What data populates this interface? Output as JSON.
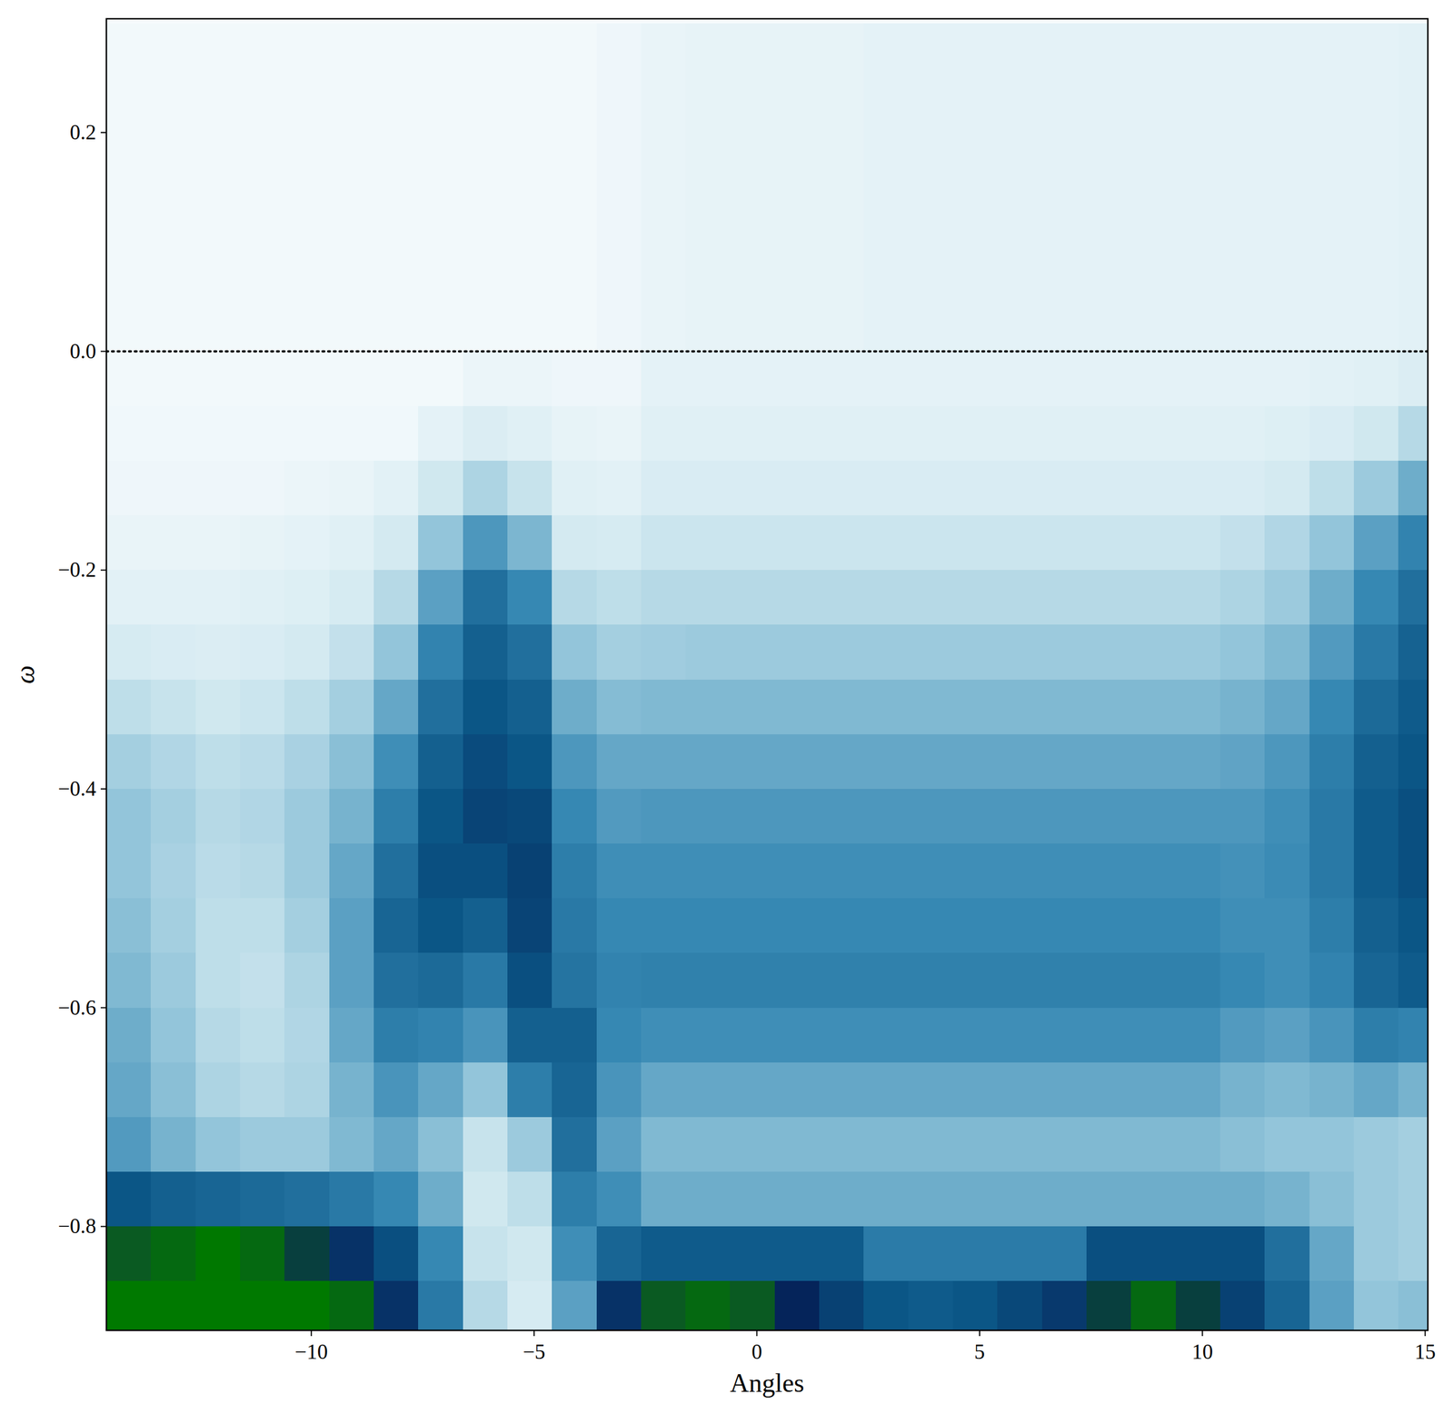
{
  "chart_data": {
    "type": "heatmap",
    "x_label": "Angles",
    "y_label": "ω",
    "xlim": [
      -14.6,
      15.06
    ],
    "ylim": [
      -0.895,
      0.304
    ],
    "xticks": [
      {
        "value": -10,
        "label": "−10"
      },
      {
        "value": -5,
        "label": "−5"
      },
      0,
      5,
      10,
      15
    ],
    "yticks": [
      {
        "value": 0.2,
        "label": "0.2"
      },
      {
        "value": 0,
        "label": "0.0"
      },
      {
        "value": -0.2,
        "label": "−0.2"
      },
      {
        "value": -0.4,
        "label": "−0.4"
      },
      {
        "value": -0.6,
        "label": "−0.6"
      },
      {
        "value": -0.8,
        "label": "−0.8"
      }
    ],
    "hline": 0,
    "zlim": [
      0,
      10
    ],
    "x": [
      -14.1,
      -13.1,
      -12.1,
      -11.1,
      -10.1,
      -9.1,
      -8.1,
      -7.1,
      -6.1,
      -5.1,
      -4.1,
      -3.1,
      -2.1,
      -1.1,
      -0.1,
      0.9,
      1.9,
      2.9,
      3.9,
      4.9,
      5.9,
      6.9,
      7.9,
      8.9,
      9.9,
      10.9,
      11.9,
      12.9,
      13.9,
      14.9
    ],
    "y": [
      0.275,
      0.225,
      0.175,
      0.125,
      0.075,
      0.025,
      -0.025,
      -0.075,
      -0.125,
      -0.175,
      -0.225,
      -0.275,
      -0.325,
      -0.375,
      -0.425,
      -0.475,
      -0.525,
      -0.575,
      -0.625,
      -0.675,
      -0.725,
      -0.775,
      -0.825,
      -0.875
    ],
    "z": [
      [
        0.2,
        0.2,
        0.2,
        0.2,
        0.2,
        0.2,
        0.2,
        0.2,
        0.2,
        0.2,
        0.2,
        0.4,
        0.6,
        0.7,
        0.7,
        0.7,
        0.7,
        0.8,
        0.8,
        0.8,
        0.8,
        0.8,
        0.8,
        0.8,
        0.8,
        0.8,
        0.8,
        0.8,
        0.8,
        0.9
      ],
      [
        0.2,
        0.2,
        0.2,
        0.2,
        0.2,
        0.2,
        0.2,
        0.2,
        0.2,
        0.2,
        0.2,
        0.4,
        0.6,
        0.7,
        0.7,
        0.7,
        0.7,
        0.8,
        0.8,
        0.8,
        0.8,
        0.8,
        0.8,
        0.8,
        0.8,
        0.8,
        0.8,
        0.8,
        0.8,
        0.9
      ],
      [
        0.2,
        0.2,
        0.2,
        0.2,
        0.2,
        0.2,
        0.2,
        0.2,
        0.2,
        0.2,
        0.2,
        0.4,
        0.6,
        0.7,
        0.7,
        0.7,
        0.7,
        0.8,
        0.8,
        0.8,
        0.8,
        0.8,
        0.8,
        0.8,
        0.8,
        0.8,
        0.8,
        0.8,
        0.8,
        0.9
      ],
      [
        0.2,
        0.2,
        0.2,
        0.2,
        0.2,
        0.2,
        0.2,
        0.2,
        0.2,
        0.2,
        0.2,
        0.4,
        0.6,
        0.7,
        0.7,
        0.7,
        0.7,
        0.8,
        0.8,
        0.8,
        0.8,
        0.8,
        0.8,
        0.8,
        0.8,
        0.8,
        0.8,
        0.8,
        0.8,
        0.9
      ],
      [
        0.2,
        0.2,
        0.2,
        0.2,
        0.2,
        0.2,
        0.2,
        0.2,
        0.2,
        0.2,
        0.2,
        0.4,
        0.6,
        0.7,
        0.7,
        0.7,
        0.7,
        0.8,
        0.8,
        0.8,
        0.8,
        0.8,
        0.8,
        0.8,
        0.8,
        0.8,
        0.8,
        0.8,
        0.8,
        0.9
      ],
      [
        0.2,
        0.2,
        0.2,
        0.2,
        0.2,
        0.2,
        0.2,
        0.2,
        0.2,
        0.2,
        0.2,
        0.4,
        0.6,
        0.7,
        0.7,
        0.7,
        0.7,
        0.8,
        0.8,
        0.8,
        0.8,
        0.8,
        0.8,
        0.8,
        0.8,
        0.8,
        0.8,
        0.8,
        0.8,
        0.9
      ],
      [
        0.2,
        0.2,
        0.2,
        0.2,
        0.2,
        0.2,
        0.2,
        0.2,
        0.5,
        0.5,
        0.4,
        0.4,
        0.8,
        0.8,
        0.8,
        0.8,
        0.8,
        0.8,
        0.8,
        0.8,
        0.8,
        0.8,
        0.8,
        0.8,
        0.8,
        0.8,
        0.8,
        0.9,
        1.0,
        1.2
      ],
      [
        0.3,
        0.3,
        0.3,
        0.3,
        0.3,
        0.3,
        0.3,
        0.8,
        1.2,
        1.0,
        0.7,
        0.6,
        1.0,
        1.0,
        1.0,
        1.0,
        1.0,
        1.0,
        1.0,
        1.0,
        1.0,
        1.0,
        1.0,
        1.0,
        1.0,
        1.0,
        1.1,
        1.3,
        1.6,
        2.2
      ],
      [
        0.4,
        0.4,
        0.4,
        0.4,
        0.5,
        0.6,
        0.9,
        1.6,
        2.4,
        1.8,
        1.0,
        0.9,
        1.3,
        1.3,
        1.3,
        1.3,
        1.3,
        1.3,
        1.3,
        1.3,
        1.3,
        1.3,
        1.3,
        1.3,
        1.3,
        1.3,
        1.5,
        2.0,
        2.8,
        3.8
      ],
      [
        0.6,
        0.6,
        0.6,
        0.7,
        0.8,
        1.0,
        1.5,
        3.0,
        4.5,
        3.5,
        1.5,
        1.4,
        1.7,
        1.7,
        1.7,
        1.7,
        1.7,
        1.7,
        1.7,
        1.7,
        1.7,
        1.7,
        1.7,
        1.7,
        1.7,
        1.9,
        2.3,
        3.0,
        4.2,
        5.2
      ],
      [
        0.9,
        0.9,
        0.9,
        1.0,
        1.1,
        1.4,
        2.2,
        4.2,
        6.0,
        5.0,
        2.2,
        2.0,
        2.2,
        2.2,
        2.2,
        2.2,
        2.2,
        2.2,
        2.2,
        2.2,
        2.2,
        2.2,
        2.2,
        2.2,
        2.2,
        2.4,
        2.8,
        3.8,
        5.0,
        6.0
      ],
      [
        1.4,
        1.3,
        1.2,
        1.3,
        1.5,
        1.9,
        3.0,
        5.2,
        6.6,
        6.0,
        3.0,
        2.6,
        2.7,
        2.8,
        2.8,
        2.8,
        2.8,
        2.8,
        2.8,
        2.8,
        2.8,
        2.8,
        2.8,
        2.8,
        2.8,
        3.0,
        3.4,
        4.4,
        5.6,
        6.5
      ],
      [
        2.0,
        1.8,
        1.6,
        1.7,
        2.0,
        2.6,
        4.0,
        6.0,
        7.0,
        6.6,
        3.8,
        3.3,
        3.4,
        3.4,
        3.4,
        3.4,
        3.4,
        3.4,
        3.4,
        3.4,
        3.4,
        3.4,
        3.4,
        3.4,
        3.4,
        3.6,
        4.0,
        5.0,
        6.2,
        6.8
      ],
      [
        2.6,
        2.3,
        2.0,
        2.1,
        2.5,
        3.2,
        4.8,
        6.6,
        7.3,
        7.0,
        4.5,
        4.0,
        4.0,
        4.0,
        4.0,
        4.0,
        4.0,
        4.0,
        4.0,
        4.0,
        4.0,
        4.0,
        4.0,
        4.0,
        4.0,
        4.1,
        4.5,
        5.4,
        6.6,
        7.0
      ],
      [
        3.0,
        2.6,
        2.2,
        2.3,
        2.8,
        3.6,
        5.4,
        7.0,
        7.5,
        7.4,
        5.0,
        4.4,
        4.5,
        4.5,
        4.5,
        4.5,
        4.5,
        4.5,
        4.5,
        4.5,
        4.5,
        4.5,
        4.5,
        4.5,
        4.5,
        4.5,
        4.8,
        5.6,
        6.8,
        7.2
      ],
      [
        3.0,
        2.5,
        2.1,
        2.2,
        2.8,
        4.0,
        6.0,
        7.2,
        7.2,
        7.6,
        5.4,
        4.8,
        4.8,
        4.8,
        4.8,
        4.8,
        4.8,
        4.8,
        4.8,
        4.8,
        4.8,
        4.8,
        4.8,
        4.8,
        4.8,
        4.7,
        4.9,
        5.6,
        6.8,
        7.2
      ],
      [
        3.2,
        2.6,
        2.0,
        2.0,
        2.6,
        4.2,
        6.4,
        7.0,
        6.6,
        7.5,
        5.6,
        5.0,
        5.0,
        5.0,
        5.0,
        5.0,
        5.0,
        5.0,
        5.0,
        5.0,
        5.0,
        5.0,
        5.0,
        5.0,
        5.0,
        4.8,
        4.8,
        5.4,
        6.6,
        7.0
      ],
      [
        3.4,
        2.8,
        2.0,
        1.9,
        2.4,
        4.2,
        6.0,
        6.2,
        5.6,
        7.2,
        5.8,
        5.2,
        5.3,
        5.3,
        5.3,
        5.3,
        5.3,
        5.3,
        5.3,
        5.3,
        5.3,
        5.3,
        5.3,
        5.3,
        5.3,
        5.0,
        4.8,
        5.2,
        6.4,
        6.8
      ],
      [
        3.8,
        3.0,
        2.2,
        2.0,
        2.3,
        4.0,
        5.4,
        5.2,
        4.6,
        6.6,
        6.6,
        5.0,
        4.8,
        4.8,
        4.8,
        4.8,
        4.8,
        4.8,
        4.8,
        4.8,
        4.8,
        4.8,
        4.8,
        4.8,
        4.8,
        4.4,
        4.2,
        4.6,
        5.4,
        5.2
      ],
      [
        4.0,
        3.2,
        2.4,
        2.2,
        2.4,
        3.6,
        4.6,
        4.0,
        3.0,
        5.4,
        6.4,
        4.6,
        4.0,
        4.0,
        4.0,
        4.0,
        4.0,
        4.0,
        4.0,
        4.0,
        4.0,
        4.0,
        4.0,
        4.0,
        4.0,
        3.6,
        3.4,
        3.6,
        4.0,
        3.6
      ],
      [
        4.4,
        3.6,
        3.0,
        2.8,
        2.8,
        3.4,
        4.0,
        3.2,
        1.8,
        2.8,
        6.0,
        4.2,
        3.4,
        3.4,
        3.4,
        3.4,
        3.4,
        3.4,
        3.4,
        3.4,
        3.4,
        3.4,
        3.4,
        3.4,
        3.4,
        3.2,
        3.0,
        3.0,
        2.8,
        2.6
      ],
      [
        7.0,
        6.6,
        6.4,
        6.2,
        6.0,
        5.6,
        5.0,
        3.8,
        1.6,
        2.0,
        5.4,
        4.8,
        3.8,
        3.8,
        3.8,
        3.8,
        3.8,
        3.8,
        3.8,
        3.8,
        3.8,
        3.8,
        3.8,
        3.8,
        3.8,
        3.8,
        3.6,
        3.2,
        2.8,
        2.6
      ],
      [
        8.8,
        9.0,
        9.2,
        9.0,
        8.6,
        8.0,
        7.2,
        5.0,
        1.8,
        1.6,
        4.8,
        6.4,
        6.8,
        6.8,
        6.8,
        6.8,
        6.8,
        5.5,
        5.5,
        5.5,
        5.5,
        5.5,
        7.2,
        7.2,
        7.2,
        7.2,
        6.0,
        4.0,
        2.8,
        2.6
      ],
      [
        9.5,
        9.6,
        9.6,
        9.5,
        9.4,
        9.0,
        8.0,
        5.6,
        2.2,
        1.4,
        4.2,
        8.0,
        8.8,
        9.0,
        8.8,
        8.4,
        7.6,
        7.0,
        6.8,
        7.0,
        7.4,
        7.8,
        8.6,
        9.0,
        8.6,
        7.6,
        6.4,
        4.2,
        3.0,
        3.2
      ]
    ]
  }
}
